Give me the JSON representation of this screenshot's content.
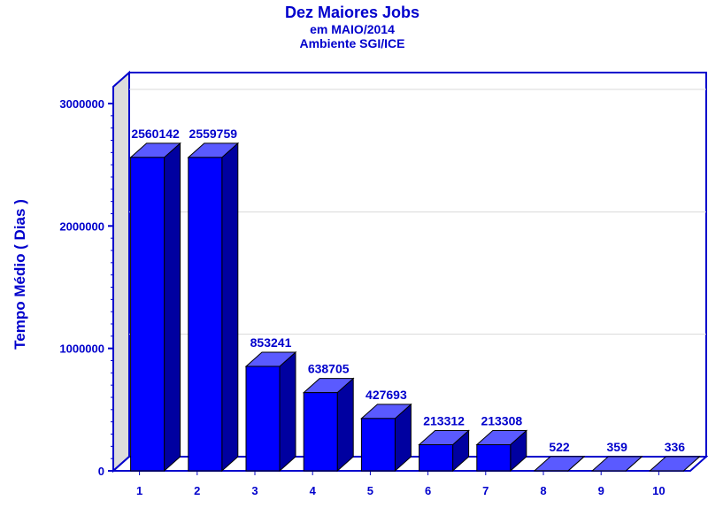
{
  "chart_data": {
    "type": "bar",
    "title": "Dez Maiores Jobs",
    "subtitle1": "em MAIO/2014",
    "subtitle2": "Ambiente SGI/ICE",
    "xlabel": "",
    "ylabel": "Tempo Médio ( Dias )",
    "categories": [
      "1",
      "2",
      "3",
      "4",
      "5",
      "6",
      "7",
      "8",
      "9",
      "10"
    ],
    "values": [
      2560142,
      2559759,
      853241,
      638705,
      427693,
      213312,
      213308,
      522,
      359,
      336
    ],
    "ylim": [
      0,
      3000000
    ],
    "yticks": [
      "0",
      "1000000",
      "2000000",
      "3000000"
    ],
    "grid": true,
    "three_d": true,
    "colors": {
      "front": "#0000ff",
      "top": "#5a5aff",
      "side": "#0000a0",
      "text": "#0000cc",
      "axis": "#0000cc",
      "wall": "#dcdcdc"
    }
  }
}
